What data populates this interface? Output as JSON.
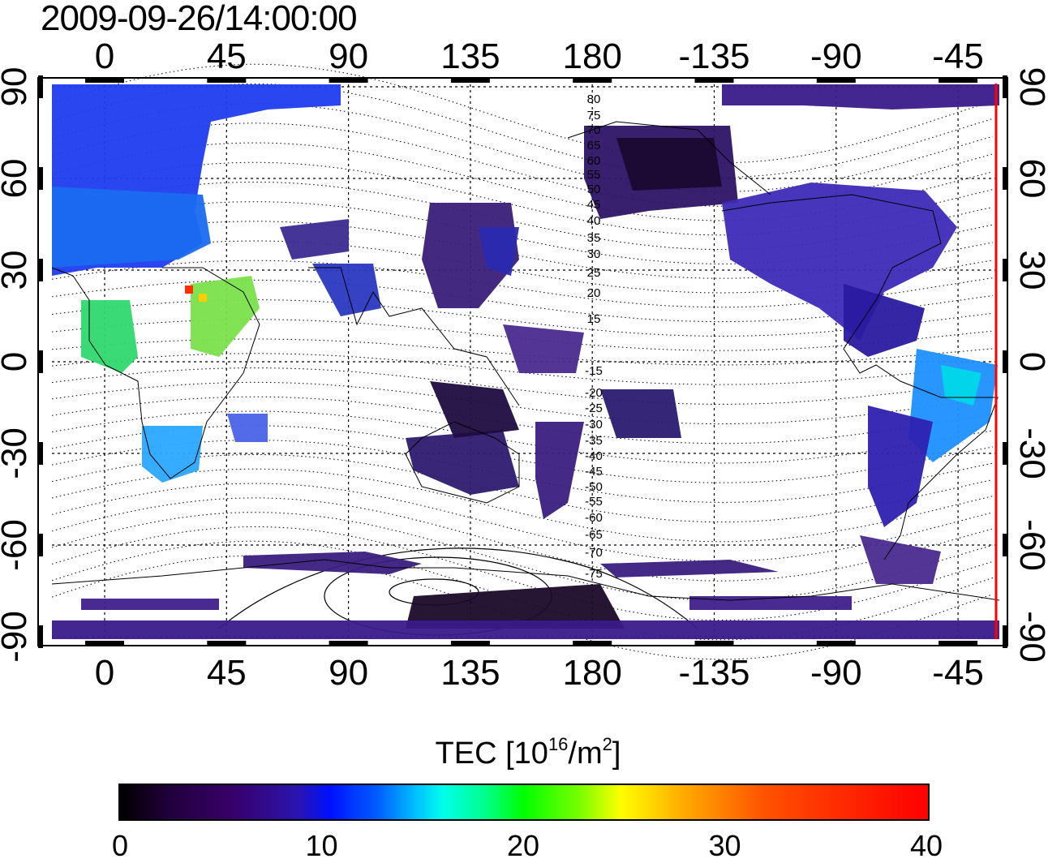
{
  "timestamp": "2009-09-26/14:00:00",
  "map": {
    "lon_ticks_top": [
      "0",
      "45",
      "90",
      "135",
      "180",
      "-135",
      "-90",
      "-45"
    ],
    "lon_ticks_bottom": [
      "0",
      "45",
      "90",
      "135",
      "180",
      "-135",
      "-90",
      "-45"
    ],
    "lat_ticks_left": [
      "90",
      "60",
      "30",
      "0",
      "-30",
      "-60",
      "-90"
    ],
    "lat_ticks_right": [
      "90",
      "60",
      "30",
      "0",
      "-30",
      "-60",
      "-90"
    ],
    "contour_labels": [
      "80",
      "75",
      "70",
      "65",
      "60",
      "55",
      "50",
      "45",
      "40",
      "35",
      "30",
      "25",
      "20",
      "15",
      "-15",
      "-20",
      "-25",
      "-30",
      "-35",
      "-40",
      "-45",
      "-50",
      "-55",
      "-60",
      "-65",
      "-70",
      "-75"
    ],
    "terminator_color": "#ff0000"
  },
  "colorbar": {
    "title_main": "TEC  [10",
    "title_exp1": "16",
    "title_mid": "/m",
    "title_exp2": "2",
    "title_end": "]",
    "tick_labels": [
      "0",
      "10",
      "20",
      "30",
      "40"
    ],
    "range": [
      0,
      40
    ]
  }
}
